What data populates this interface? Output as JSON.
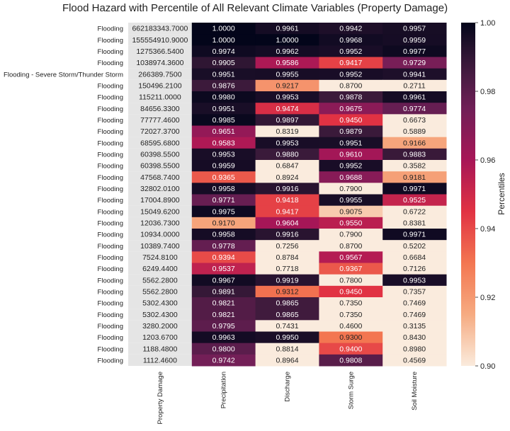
{
  "chart_data": {
    "type": "heatmap",
    "title": "Flood Hazard with Percentile of All Relevant Climate Variables (Property Damage)",
    "columns": [
      "Property Damage",
      "Precipitation",
      "Discharge",
      "Storm Surge",
      "Soil Moisture"
    ],
    "row_labels": [
      "Flooding",
      "Flooding",
      "Flooding",
      "Flooding",
      "Flooding - Severe Storm/Thunder Storm",
      "Flooding",
      "Flooding",
      "Flooding",
      "Flooding",
      "Flooding",
      "Flooding",
      "Flooding",
      "Flooding",
      "Flooding",
      "Flooding",
      "Flooding",
      "Flooding",
      "Flooding",
      "Flooding",
      "Flooding",
      "Flooding",
      "Flooding",
      "Flooding",
      "Flooding",
      "Flooding",
      "Flooding",
      "Flooding",
      "Flooding",
      "Flooding",
      "Flooding"
    ],
    "property_damage": [
      "662183343.7000",
      "155554910.9000",
      "1275366.5400",
      "1038974.3600",
      "266389.7500",
      "150496.2100",
      "115211.0000",
      "84656.3300",
      "77777.4600",
      "72027.3700",
      "68595.6800",
      "60398.5500",
      "60398.5500",
      "47568.7400",
      "32802.0100",
      "17004.8900",
      "15049.6200",
      "12036.7300",
      "10934.0000",
      "10389.7400",
      "7524.8100",
      "6249.4400",
      "5562.2800",
      "5562.2800",
      "5302.4300",
      "5302.4300",
      "3280.2000",
      "1203.6700",
      "1188.4800",
      "1112.4600"
    ],
    "values": [
      [
        "1.0000",
        "0.9961",
        "0.9942",
        "0.9957"
      ],
      [
        "1.0000",
        "1.0000",
        "0.9968",
        "0.9959"
      ],
      [
        "0.9974",
        "0.9962",
        "0.9952",
        "0.9977"
      ],
      [
        "0.9905",
        "0.9586",
        "0.9417",
        "0.9729"
      ],
      [
        "0.9951",
        "0.9955",
        "0.9952",
        "0.9941"
      ],
      [
        "0.9876",
        "0.9217",
        "0.8700",
        "0.2711"
      ],
      [
        "0.9980",
        "0.9953",
        "0.9878",
        "0.9961"
      ],
      [
        "0.9951",
        "0.9474",
        "0.9675",
        "0.9774"
      ],
      [
        "0.9985",
        "0.9897",
        "0.9450",
        "0.6673"
      ],
      [
        "0.9651",
        "0.8319",
        "0.9879",
        "0.5889"
      ],
      [
        "0.9583",
        "0.9953",
        "0.9951",
        "0.9166"
      ],
      [
        "0.9953",
        "0.9880",
        "0.9610",
        "0.9883"
      ],
      [
        "0.9959",
        "0.6847",
        "0.9952",
        "0.3582"
      ],
      [
        "0.9365",
        "0.8924",
        "0.9688",
        "0.9181"
      ],
      [
        "0.9958",
        "0.9916",
        "0.7900",
        "0.9971"
      ],
      [
        "0.9771",
        "0.9418",
        "0.9955",
        "0.9525"
      ],
      [
        "0.9975",
        "0.9417",
        "0.9075",
        "0.6722"
      ],
      [
        "0.9170",
        "0.9604",
        "0.9550",
        "0.8381"
      ],
      [
        "0.9958",
        "0.9916",
        "0.7900",
        "0.9971"
      ],
      [
        "0.9778",
        "0.7256",
        "0.8700",
        "0.5202"
      ],
      [
        "0.9394",
        "0.8784",
        "0.9567",
        "0.6684"
      ],
      [
        "0.9537",
        "0.7718",
        "0.9367",
        "0.7126"
      ],
      [
        "0.9967",
        "0.9919",
        "0.7800",
        "0.9953"
      ],
      [
        "0.9891",
        "0.9312",
        "0.9450",
        "0.7357"
      ],
      [
        "0.9821",
        "0.9865",
        "0.7350",
        "0.7469"
      ],
      [
        "0.9821",
        "0.9865",
        "0.7350",
        "0.7469"
      ],
      [
        "0.9795",
        "0.7431",
        "0.4600",
        "0.3135"
      ],
      [
        "0.9963",
        "0.9950",
        "0.9300",
        "0.8430"
      ],
      [
        "0.9800",
        "0.8814",
        "0.9400",
        "0.8980"
      ],
      [
        "0.9742",
        "0.8964",
        "0.9808",
        "0.4569"
      ]
    ],
    "colorbar": {
      "label": "Percentiles",
      "range": [
        0.9,
        1.0
      ],
      "ticks": [
        "0.90",
        "0.92",
        "0.94",
        "0.96",
        "0.98",
        "1.00"
      ],
      "colormap": "rocket_r",
      "low_color": "#faebdd",
      "high_color": "#03051a"
    },
    "property_damage_cell_color": "#e5e5e5"
  }
}
